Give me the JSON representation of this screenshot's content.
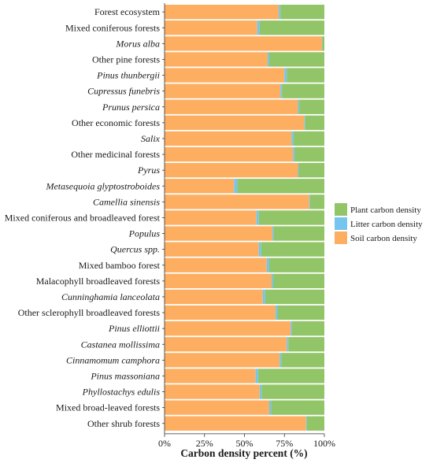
{
  "chart_data": {
    "type": "bar",
    "orientation": "horizontal",
    "stacked": true,
    "categories": [
      "Forest ecosystem",
      "Mixed coniferous forests",
      "Morus alba",
      "Other pine forests",
      "Pinus thunbergii",
      "Cupressus funebris",
      "Prunus persica",
      "Other economic forests",
      "Salix",
      "Other medicinal forests",
      "Pyrus",
      "Metasequoia glyptostroboides",
      "Camellia sinensis",
      "Mixed coniferous and broadleaved forest",
      "Populus",
      "Quercus spp.",
      "Mixed bamboo forest",
      "Malacophyll broadleaved forests",
      "Cunninghamia lanceolata",
      "Other sclerophyll broadleaved forests",
      "Pinus elliottii",
      "Castanea mollissima",
      "Cinnamomum camphora",
      "Pinus massoniana",
      "Phyllostachys edulis",
      "Mixed broad-leaved forests",
      "Other shrub forests"
    ],
    "italic_categories": [
      "Morus alba",
      "Pinus thunbergii",
      "Cupressus funebris",
      "Prunus persica",
      "Salix",
      "Pyrus",
      "Metasequoia glyptostroboides",
      "Camellia sinensis",
      "Populus",
      "Quercus spp.",
      "Cunninghamia lanceolata",
      "Pinus elliottii",
      "Castanea mollissima",
      "Cinnamomum camphora",
      "Pinus massoniana",
      "Phyllostachys edulis"
    ],
    "series": [
      {
        "name": "Soil carbon density",
        "color": "#FDAE61",
        "values": [
          71.5,
          58,
          98.5,
          64.5,
          75,
          72.5,
          83.5,
          87.5,
          79.5,
          80.5,
          83.5,
          43.5,
          90.5,
          57.5,
          67.5,
          59,
          64,
          67,
          61.5,
          69.5,
          79,
          76.5,
          72,
          57,
          59.5,
          65.5,
          88.5
        ]
      },
      {
        "name": "Litter carbon density",
        "color": "#74C6EE",
        "values": [
          1.0,
          1.5,
          0.3,
          1.0,
          1.5,
          1.0,
          0.8,
          0.5,
          1.2,
          1.0,
          0.5,
          2.0,
          0.5,
          1.5,
          0.8,
          1.5,
          1.5,
          1.0,
          1.5,
          1.2,
          0.8,
          1.0,
          1.0,
          1.5,
          1.2,
          1.2,
          0.5
        ]
      },
      {
        "name": "Plant carbon density",
        "color": "#91C567",
        "values": [
          27.5,
          40.5,
          1.2,
          34.5,
          23.5,
          26.5,
          15.7,
          12.0,
          19.3,
          18.5,
          16.0,
          54.5,
          9.0,
          41.0,
          31.7,
          39.5,
          34.5,
          32.0,
          37.0,
          29.3,
          20.2,
          22.5,
          27.0,
          41.5,
          39.3,
          33.3,
          11.0
        ]
      }
    ],
    "legend_order": [
      "Plant carbon density",
      "Litter carbon density",
      "Soil carbon density"
    ],
    "xlabel": "Carbon density percent (%)",
    "ylabel": "",
    "xlim": [
      0,
      100
    ],
    "xticks": [
      "0%",
      "25%",
      "50%",
      "75%",
      "100%"
    ],
    "grid": false,
    "legend_position": "right"
  }
}
